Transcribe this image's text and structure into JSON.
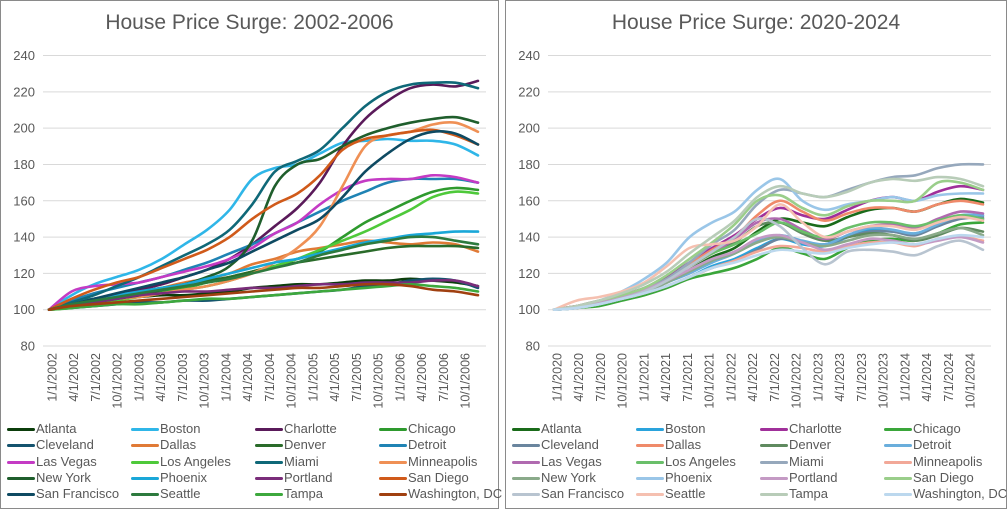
{
  "chart_data": [
    {
      "type": "line",
      "title": "House Price Surge: 2002-2006",
      "xlabel": "",
      "ylabel": "",
      "ylim": [
        80,
        240
      ],
      "yticks": [
        "80",
        "100",
        "120",
        "140",
        "160",
        "180",
        "200",
        "220",
        "240"
      ],
      "grid": true,
      "legend": "bottom",
      "xtick_labels": [
        "1/1/2002",
        "4/1/2002",
        "7/1/2002",
        "10/1/2002",
        "1/1/2003",
        "4/1/2003",
        "7/1/2003",
        "10/1/2003",
        "1/1/2004",
        "4/1/2004",
        "7/1/2004",
        "10/1/2004",
        "1/1/2005",
        "4/1/2005",
        "7/1/2005",
        "10/1/2005",
        "1/1/2006",
        "4/1/2006",
        "7/1/2006",
        "10/1/2006"
      ],
      "series": [
        {
          "name": "Atlanta",
          "color": "#0b3d0b",
          "values": [
            100,
            102,
            104,
            106,
            107,
            108,
            108,
            109,
            110,
            112,
            113,
            114,
            114,
            115,
            116,
            116,
            117,
            116,
            115,
            113
          ]
        },
        {
          "name": "Boston",
          "color": "#2fb6e8",
          "values": [
            100,
            108,
            114,
            118,
            122,
            128,
            136,
            144,
            155,
            172,
            178,
            180,
            186,
            192,
            193,
            194,
            193,
            193,
            191,
            185
          ]
        },
        {
          "name": "Charlotte",
          "color": "#5a1a5a",
          "values": [
            100,
            103,
            106,
            108,
            111,
            114,
            118,
            122,
            128,
            136,
            146,
            156,
            170,
            190,
            205,
            215,
            222,
            224,
            223,
            226
          ]
        },
        {
          "name": "Chicago",
          "color": "#2e9a2e",
          "values": [
            100,
            102,
            104,
            106,
            108,
            110,
            112,
            115,
            118,
            121,
            124,
            128,
            132,
            140,
            148,
            154,
            160,
            165,
            167,
            166
          ]
        },
        {
          "name": "Cleveland",
          "color": "#14536e",
          "values": [
            100,
            101,
            102,
            103,
            104,
            104,
            105,
            105,
            106,
            107,
            108,
            109,
            110,
            111,
            113,
            114,
            116,
            117,
            116,
            112
          ]
        },
        {
          "name": "Dallas",
          "color": "#e07a36",
          "values": [
            100,
            103,
            105,
            107,
            109,
            112,
            115,
            117,
            120,
            125,
            128,
            132,
            134,
            136,
            138,
            137,
            136,
            137,
            136,
            132
          ]
        },
        {
          "name": "Denver",
          "color": "#2a6b2a",
          "values": [
            100,
            104,
            106,
            108,
            110,
            112,
            114,
            116,
            118,
            121,
            124,
            126,
            128,
            130,
            132,
            134,
            135,
            135,
            135,
            134
          ]
        },
        {
          "name": "Detroit",
          "color": "#1f83b4",
          "values": [
            100,
            105,
            109,
            112,
            115,
            118,
            122,
            126,
            131,
            136,
            142,
            148,
            154,
            160,
            165,
            170,
            172,
            172,
            172,
            170
          ]
        },
        {
          "name": "Las Vegas",
          "color": "#c43bc4",
          "values": [
            100,
            110,
            113,
            114,
            115,
            118,
            121,
            124,
            128,
            134,
            142,
            148,
            158,
            166,
            171,
            172,
            172,
            174,
            173,
            170
          ]
        },
        {
          "name": "Los Angeles",
          "color": "#4ec93a",
          "values": [
            100,
            101,
            103,
            105,
            107,
            109,
            111,
            113,
            116,
            120,
            124,
            128,
            133,
            138,
            143,
            149,
            155,
            162,
            165,
            164
          ]
        },
        {
          "name": "Miami",
          "color": "#0f6878",
          "values": [
            100,
            104,
            108,
            113,
            118,
            124,
            130,
            136,
            144,
            158,
            176,
            182,
            188,
            200,
            212,
            220,
            224,
            225,
            225,
            222
          ]
        },
        {
          "name": "Minneapolis",
          "color": "#ef9055",
          "values": [
            100,
            102,
            104,
            106,
            107,
            109,
            111,
            113,
            116,
            120,
            126,
            134,
            146,
            168,
            190,
            196,
            198,
            202,
            203,
            198
          ]
        },
        {
          "name": "New York",
          "color": "#1f5e2c",
          "values": [
            100,
            102,
            104,
            106,
            108,
            111,
            114,
            118,
            124,
            138,
            168,
            180,
            183,
            190,
            196,
            200,
            203,
            205,
            206,
            203
          ]
        },
        {
          "name": "Phoenix",
          "color": "#1aa7d8",
          "values": [
            100,
            103,
            106,
            108,
            110,
            112,
            114,
            117,
            120,
            123,
            126,
            128,
            131,
            134,
            137,
            139,
            141,
            142,
            143,
            143
          ]
        },
        {
          "name": "Portland",
          "color": "#7a2d7a",
          "values": [
            100,
            102,
            104,
            106,
            108,
            109,
            110,
            110,
            111,
            112,
            112,
            113,
            114,
            114,
            115,
            115,
            115,
            116,
            116,
            113
          ]
        },
        {
          "name": "San Diego",
          "color": "#d05a1a",
          "values": [
            100,
            106,
            111,
            115,
            118,
            123,
            128,
            133,
            140,
            150,
            158,
            164,
            174,
            188,
            194,
            196,
            198,
            199,
            196,
            191
          ]
        },
        {
          "name": "San Francisco",
          "color": "#0e4a62",
          "values": [
            100,
            103,
            106,
            109,
            112,
            115,
            118,
            122,
            126,
            132,
            138,
            144,
            150,
            162,
            176,
            186,
            194,
            198,
            197,
            191
          ]
        },
        {
          "name": "Seattle",
          "color": "#2d7a3e",
          "values": [
            100,
            103,
            105,
            107,
            109,
            111,
            113,
            115,
            117,
            120,
            123,
            126,
            130,
            133,
            136,
            138,
            140,
            140,
            138,
            136
          ]
        },
        {
          "name": "Tampa",
          "color": "#3da83d",
          "values": [
            100,
            101,
            102,
            103,
            103,
            104,
            105,
            106,
            106,
            107,
            108,
            109,
            110,
            111,
            112,
            113,
            114,
            113,
            112,
            110
          ]
        },
        {
          "name": "Washington, DC",
          "color": "#a04010",
          "values": [
            100,
            102,
            103,
            104,
            105,
            106,
            107,
            108,
            109,
            110,
            111,
            112,
            112,
            113,
            114,
            114,
            113,
            111,
            110,
            108
          ]
        }
      ]
    },
    {
      "type": "line",
      "title": "House Price Surge: 2020-2024",
      "xlabel": "",
      "ylabel": "",
      "ylim": [
        80,
        240
      ],
      "yticks": [
        "80",
        "100",
        "120",
        "140",
        "160",
        "180",
        "200",
        "220",
        "240"
      ],
      "grid": true,
      "legend": "bottom",
      "xtick_labels": [
        "1/1/2020",
        "4/1/2020",
        "7/1/2020",
        "10/1/2020",
        "1/1/2021",
        "4/1/2021",
        "7/1/2021",
        "10/1/2021",
        "1/1/2022",
        "4/1/2022",
        "7/1/2022",
        "10/1/2022",
        "1/1/2023",
        "4/1/2023",
        "7/1/2023",
        "10/1/2023",
        "1/1/2024",
        "4/1/2024",
        "7/1/2024",
        "10/1/2024"
      ],
      "series": [
        {
          "name": "Atlanta",
          "color": "#1a6b1a",
          "values": [
            100,
            102,
            104,
            107,
            110,
            115,
            122,
            129,
            134,
            143,
            150,
            148,
            146,
            151,
            155,
            156,
            154,
            158,
            161,
            159
          ]
        },
        {
          "name": "Boston",
          "color": "#2aa3dc",
          "values": [
            100,
            101,
            103,
            106,
            109,
            113,
            118,
            124,
            128,
            134,
            139,
            136,
            135,
            140,
            144,
            143,
            142,
            146,
            151,
            150
          ]
        },
        {
          "name": "Charlotte",
          "color": "#a0309a",
          "values": [
            100,
            102,
            105,
            108,
            112,
            118,
            126,
            134,
            141,
            150,
            156,
            152,
            150,
            155,
            160,
            162,
            160,
            165,
            168,
            166
          ]
        },
        {
          "name": "Chicago",
          "color": "#3aa63a",
          "values": [
            100,
            101,
            102,
            105,
            108,
            112,
            117,
            120,
            123,
            128,
            134,
            131,
            128,
            134,
            138,
            139,
            138,
            142,
            147,
            148
          ]
        },
        {
          "name": "Cleveland",
          "color": "#6a859e",
          "values": [
            100,
            101,
            103,
            106,
            109,
            113,
            118,
            123,
            127,
            133,
            139,
            137,
            136,
            140,
            143,
            143,
            141,
            146,
            150,
            151
          ]
        },
        {
          "name": "Dallas",
          "color": "#ef8a6a",
          "values": [
            100,
            102,
            104,
            107,
            111,
            117,
            125,
            133,
            140,
            152,
            160,
            154,
            149,
            153,
            156,
            156,
            154,
            158,
            160,
            158
          ]
        },
        {
          "name": "Denver",
          "color": "#5f8a5f",
          "values": [
            100,
            102,
            104,
            107,
            111,
            117,
            124,
            131,
            137,
            146,
            148,
            142,
            138,
            140,
            142,
            141,
            138,
            141,
            145,
            143
          ]
        },
        {
          "name": "Detroit",
          "color": "#6aaedc",
          "values": [
            100,
            101,
            103,
            106,
            110,
            115,
            120,
            126,
            131,
            138,
            141,
            138,
            136,
            141,
            145,
            144,
            142,
            147,
            152,
            152
          ]
        },
        {
          "name": "Las Vegas",
          "color": "#b06ab0",
          "values": [
            100,
            102,
            104,
            107,
            111,
            117,
            124,
            131,
            139,
            148,
            150,
            144,
            139,
            143,
            146,
            147,
            145,
            150,
            154,
            153
          ]
        },
        {
          "name": "Los Angeles",
          "color": "#6abf6a",
          "values": [
            100,
            102,
            104,
            107,
            111,
            117,
            124,
            131,
            136,
            142,
            148,
            143,
            140,
            145,
            148,
            148,
            146,
            149,
            152,
            150
          ]
        },
        {
          "name": "Miami",
          "color": "#96a8bc",
          "values": [
            100,
            102,
            104,
            107,
            111,
            117,
            126,
            136,
            144,
            158,
            166,
            164,
            162,
            166,
            170,
            173,
            174,
            178,
            180,
            180
          ]
        },
        {
          "name": "Minneapolis",
          "color": "#f2a898",
          "values": [
            100,
            102,
            104,
            106,
            109,
            113,
            118,
            123,
            127,
            132,
            135,
            134,
            132,
            135,
            137,
            137,
            135,
            139,
            140,
            138
          ]
        },
        {
          "name": "New York",
          "color": "#8aaa8a",
          "values": [
            100,
            101,
            103,
            106,
            110,
            115,
            121,
            127,
            131,
            137,
            140,
            137,
            135,
            138,
            141,
            141,
            139,
            142,
            145,
            141
          ]
        },
        {
          "name": "Phoenix",
          "color": "#9ac6e8",
          "values": [
            100,
            102,
            105,
            110,
            117,
            126,
            140,
            148,
            154,
            166,
            172,
            160,
            155,
            158,
            160,
            162,
            160,
            163,
            164,
            164
          ]
        },
        {
          "name": "Portland",
          "color": "#c49ac4",
          "values": [
            100,
            102,
            104,
            107,
            111,
            116,
            122,
            128,
            132,
            139,
            141,
            137,
            133,
            136,
            139,
            138,
            136,
            138,
            140,
            137
          ]
        },
        {
          "name": "San Diego",
          "color": "#9ace8a",
          "values": [
            100,
            102,
            105,
            108,
            112,
            119,
            128,
            137,
            147,
            160,
            163,
            156,
            152,
            157,
            160,
            160,
            160,
            170,
            170,
            166
          ]
        },
        {
          "name": "San Francisco",
          "color": "#b8c4d0",
          "values": [
            100,
            101,
            103,
            106,
            110,
            116,
            124,
            132,
            140,
            150,
            146,
            134,
            125,
            132,
            133,
            132,
            130,
            135,
            138,
            133
          ]
        },
        {
          "name": "Seattle",
          "color": "#f5c0b0",
          "values": [
            100,
            105,
            107,
            110,
            115,
            124,
            134,
            136,
            138,
            146,
            158,
            148,
            140,
            143,
            146,
            146,
            144,
            148,
            151,
            149
          ]
        },
        {
          "name": "Tampa",
          "color": "#b8ccb8",
          "values": [
            100,
            102,
            105,
            109,
            114,
            121,
            131,
            140,
            149,
            162,
            168,
            164,
            162,
            165,
            170,
            172,
            171,
            173,
            172,
            168
          ]
        },
        {
          "name": "Washington, DC",
          "color": "#bcd8ee",
          "values": [
            100,
            101,
            103,
            106,
            109,
            113,
            118,
            123,
            126,
            130,
            133,
            132,
            131,
            134,
            136,
            137,
            136,
            139,
            141,
            140
          ]
        }
      ]
    }
  ]
}
